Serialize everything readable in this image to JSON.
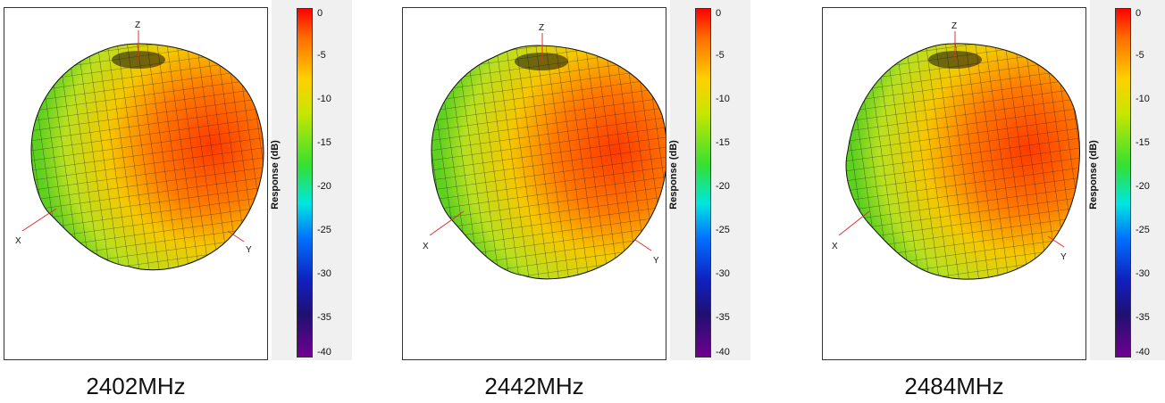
{
  "colorbar": {
    "title": "Response  (dB)",
    "ticks": [
      "0",
      "-5",
      "-10",
      "-15",
      "-20",
      "-25",
      "-30",
      "-35",
      "-40"
    ]
  },
  "axes": {
    "x": "X",
    "y": "Y",
    "z": "Z"
  },
  "panels": [
    {
      "frequency": "2402MHz"
    },
    {
      "frequency": "2442MHz"
    },
    {
      "frequency": "2484MHz"
    }
  ],
  "colors": {
    "peak": "#ff4a00",
    "mid": "#f0c000",
    "low": "#5ed020",
    "mesh": "#1a1a1a"
  }
}
